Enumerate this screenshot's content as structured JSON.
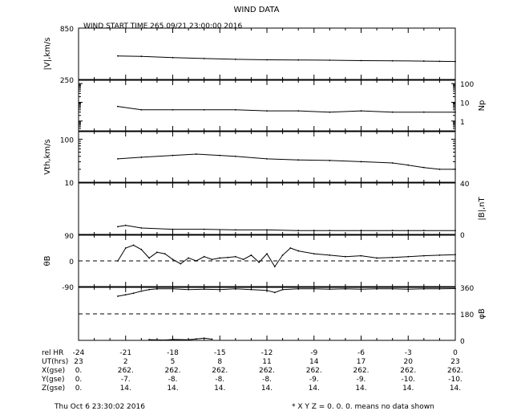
{
  "header": {
    "title": "WIND DATA",
    "start_label": "WIND START TIME 265 09/21 23:00:00 2016"
  },
  "footer": {
    "timestamp": "Thu Oct  6 23:30:02 2016",
    "note": "* X Y Z = 0. 0. 0. means no data shown"
  },
  "time_table": {
    "rows": [
      {
        "label": "rel HR",
        "values": [
          "-24",
          "-21",
          "-18",
          "-15",
          "-12",
          "-9",
          "-6",
          "-3",
          "0"
        ]
      },
      {
        "label": "UT(hrs)",
        "values": [
          "23",
          "2",
          "5",
          "8",
          "11",
          "14",
          "17",
          "20",
          "23"
        ]
      },
      {
        "label": "X(gse)",
        "values": [
          "0.",
          "262.",
          "262.",
          "262.",
          "262.",
          "262.",
          "262.",
          "262.",
          "262."
        ]
      },
      {
        "label": "Y(gse)",
        "values": [
          "0.",
          "-7.",
          "-8.",
          "-8.",
          "-8.",
          "-9.",
          "-9.",
          "-10.",
          "-10."
        ]
      },
      {
        "label": "Z(gse)",
        "values": [
          "0.",
          "14.",
          "14.",
          "14.",
          "14.",
          "14.",
          "14.",
          "14.",
          "14."
        ]
      }
    ]
  },
  "chart_data": {
    "type": "line",
    "x_label": "rel HR",
    "x_range": [
      -24,
      0
    ],
    "x_ticks": [
      -24,
      -21,
      -18,
      -15,
      -12,
      -9,
      -6,
      -3,
      0
    ],
    "panels": [
      {
        "id": "v",
        "ylabel": "|V|,km/s",
        "label_side": "left",
        "scale": "linear",
        "ylim": [
          250,
          850
        ],
        "tick_labels": [
          "850",
          "250"
        ],
        "series": [
          {
            "x": [
              -21.5,
              -20,
              -18,
              -16,
              -14,
              -12,
              -10,
              -8,
              -6,
              -4,
              -2,
              -1,
              0
            ],
            "y": [
              525,
              520,
              505,
              495,
              485,
              480,
              478,
              475,
              470,
              468,
              465,
              462,
              460
            ]
          }
        ]
      },
      {
        "id": "np",
        "ylabel": "Np",
        "label_side": "right",
        "scale": "log",
        "ylim": [
          0.3,
          150
        ],
        "tick_labels": [
          "100",
          "10",
          "1"
        ],
        "tick_values": [
          100,
          10,
          1
        ],
        "series": [
          {
            "x": [
              -21.5,
              -20,
              -18,
              -16,
              -14,
              -12,
              -10,
              -8,
              -6,
              -4,
              -2,
              0
            ],
            "y": [
              6,
              4,
              4,
              4,
              4,
              3.5,
              3.5,
              3,
              3.5,
              3,
              3,
              3
            ]
          }
        ]
      },
      {
        "id": "vth",
        "ylabel": "Vth,km/s",
        "label_side": "left",
        "scale": "log",
        "ylim": [
          10,
          150
        ],
        "tick_labels": [
          "100",
          "10"
        ],
        "tick_values": [
          100,
          10
        ],
        "series": [
          {
            "x": [
              -21.5,
              -20,
              -18,
              -16.5,
              -15,
              -14,
              -12,
              -10,
              -8,
              -6,
              -4,
              -3,
              -2,
              -1,
              0
            ],
            "y": [
              35,
              38,
              42,
              45,
              42,
              40,
              35,
              33,
              32,
              30,
              28,
              25,
              22,
              20,
              20
            ]
          }
        ]
      },
      {
        "id": "b",
        "ylabel": "|B|,nT",
        "label_side": "right",
        "scale": "linear",
        "ylim": [
          0,
          40
        ],
        "tick_labels": [
          "40",
          "0"
        ],
        "series": [
          {
            "x": [
              -21.5,
              -21,
              -20,
              -18,
              -16,
              -14,
              -12,
              -10,
              -8,
              -6,
              -4,
              -2,
              0
            ],
            "y": [
              6,
              7,
              5,
              4,
              4,
              3.5,
              3.5,
              3,
              3,
              3,
              3,
              3,
              3
            ]
          }
        ]
      },
      {
        "id": "theta",
        "ylabel": "θB",
        "label_side": "left",
        "scale": "linear",
        "ylim": [
          -90,
          90
        ],
        "tick_labels": [
          "90",
          "0",
          "-90"
        ],
        "tick_values": [
          90,
          0,
          -90
        ],
        "zero_line": 0,
        "series": [
          {
            "x": [
              -21.5,
              -21,
              -20.5,
              -20,
              -19.5,
              -19,
              -18.5,
              -18,
              -17.5,
              -17,
              -16.5,
              -16,
              -15.5,
              -15,
              -14.5,
              -14,
              -13.5,
              -13,
              -12.5,
              -12,
              -11.5,
              -11,
              -10.5,
              -10,
              -9,
              -8,
              -7,
              -6,
              -5,
              -4,
              -3,
              -2,
              -1,
              0
            ],
            "y": [
              0,
              45,
              55,
              40,
              10,
              30,
              25,
              5,
              -10,
              10,
              0,
              15,
              5,
              10,
              12,
              15,
              5,
              20,
              -5,
              25,
              -20,
              20,
              45,
              35,
              25,
              20,
              15,
              18,
              10,
              12,
              15,
              18,
              20,
              22
            ]
          }
        ]
      },
      {
        "id": "phi",
        "ylabel": "φB",
        "label_side": "right",
        "scale": "linear",
        "ylim": [
          0,
          360
        ],
        "tick_labels": [
          "360",
          "180",
          "0"
        ],
        "tick_values": [
          360,
          180,
          0
        ],
        "zero_line": 180,
        "series": [
          {
            "x": [
              -21.5,
              -21,
              -20.5,
              -20,
              -19.5,
              -19,
              -18,
              -17,
              -16,
              -15,
              -14,
              -13,
              -12,
              -11.5,
              -11,
              -10,
              -9,
              -8,
              -7,
              -6,
              -5,
              -4,
              -3,
              -2,
              -1,
              0
            ],
            "y": [
              300,
              310,
              320,
              335,
              345,
              350,
              350,
              345,
              348,
              345,
              350,
              345,
              340,
              325,
              345,
              350,
              350,
              348,
              350,
              348,
              350,
              350,
              348,
              350,
              350,
              352
            ]
          },
          {
            "x": [
              -19.5,
              -18.5,
              -18,
              -17,
              -16.5,
              -16,
              -15.5
            ],
            "y": [
              5,
              2,
              6,
              4,
              10,
              15,
              8
            ]
          }
        ]
      }
    ]
  }
}
